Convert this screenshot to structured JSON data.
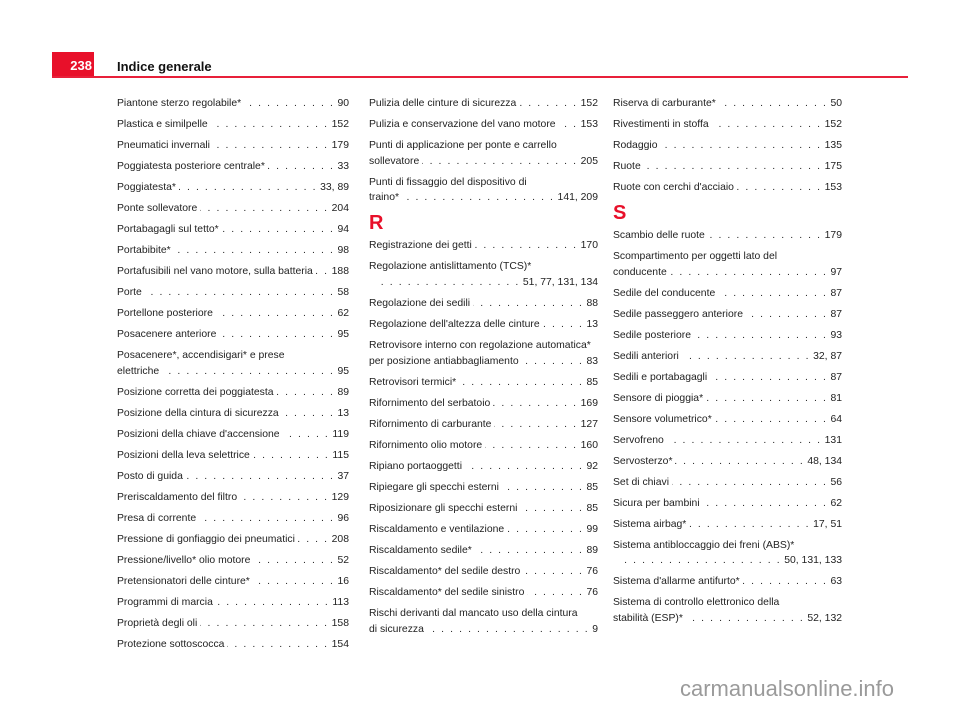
{
  "header": {
    "page_number": "238",
    "title": "Indice generale",
    "accent_color": "#e8102a"
  },
  "watermark": "carmanualsonline.info",
  "columns": [
    [
      {
        "text": "Piantone sterzo regolabile*",
        "pages": "90"
      },
      {
        "text": "Plastica e similpelle",
        "pages": "152"
      },
      {
        "text": "Pneumatici invernali",
        "pages": "179"
      },
      {
        "text": "Poggiatesta posteriore centrale*",
        "pages": "33"
      },
      {
        "text": "Poggiatesta*",
        "pages": "33, 89"
      },
      {
        "text": "Ponte sollevatore",
        "pages": "204"
      },
      {
        "text": "Portabagagli sul tetto*",
        "pages": "94"
      },
      {
        "text": "Portabibite*",
        "pages": "98"
      },
      {
        "text": "Portafusibili nel vano motore, sulla batteria",
        "pages": "188"
      },
      {
        "text": "Porte",
        "pages": "58"
      },
      {
        "text": "Portellone posteriore",
        "pages": "62"
      },
      {
        "text": "Posacenere anteriore",
        "pages": "95"
      },
      {
        "text": "Posacenere*, accendisigari* e prese",
        "text2": "elettriche",
        "pages": "95"
      },
      {
        "text": "Posizione corretta dei poggiatesta",
        "pages": "89"
      },
      {
        "text": "Posizione della cintura di sicurezza",
        "pages": "13"
      },
      {
        "text": "Posizioni della chiave d'accensione",
        "pages": "119"
      },
      {
        "text": "Posizioni della leva selettrice",
        "pages": "115"
      },
      {
        "text": "Posto di guida",
        "pages": "37"
      },
      {
        "text": "Preriscaldamento del filtro",
        "pages": "129"
      },
      {
        "text": "Presa di corrente",
        "pages": "96"
      },
      {
        "text": "Pressione di gonfiaggio dei pneumatici",
        "pages": "208"
      },
      {
        "text": "Pressione/livello* olio motore",
        "pages": "52"
      },
      {
        "text": "Pretensionatori delle cinture*",
        "pages": "16"
      },
      {
        "text": "Programmi di marcia",
        "pages": "113"
      },
      {
        "text": "Proprietà degli oli",
        "pages": "158"
      },
      {
        "text": "Protezione sottoscocca",
        "pages": "154"
      }
    ],
    [
      {
        "text": "Pulizia delle cinture di sicurezza",
        "pages": "152"
      },
      {
        "text": "Pulizia e conservazione del vano motore",
        "pages": "153"
      },
      {
        "text": "Punti di applicazione per ponte e carrello",
        "text2": "sollevatore",
        "pages": "205"
      },
      {
        "text": "Punti di fissaggio del dispositivo di",
        "text2": "traino*",
        "pages": "141, 209"
      },
      {
        "heading": "R"
      },
      {
        "text": "Registrazione dei getti",
        "pages": "170"
      },
      {
        "text": "Regolazione antislittamento (TCS)*",
        "text2": "",
        "pages": "51, 77, 131, 134"
      },
      {
        "text": "Regolazione dei sedili",
        "pages": "88"
      },
      {
        "text": "Regolazione dell'altezza delle cinture",
        "pages": "13"
      },
      {
        "text": "Retrovisore interno con regolazione automatica*",
        "text2": "per posizione antiabbagliamento",
        "pages": "83"
      },
      {
        "text": "Retrovisori termici*",
        "pages": "85"
      },
      {
        "text": "Rifornimento del serbatoio",
        "pages": "169"
      },
      {
        "text": "Rifornimento di carburante",
        "pages": "127"
      },
      {
        "text": "Rifornimento olio motore",
        "pages": "160"
      },
      {
        "text": "Ripiano portaoggetti",
        "pages": "92"
      },
      {
        "text": "Ripiegare gli specchi esterni",
        "pages": "85"
      },
      {
        "text": "Riposizionare gli specchi esterni",
        "pages": "85"
      },
      {
        "text": "Riscaldamento e ventilazione",
        "pages": "99"
      },
      {
        "text": "Riscaldamento sedile*",
        "pages": "89"
      },
      {
        "text": "Riscaldamento* del sedile destro",
        "pages": "76"
      },
      {
        "text": "Riscaldamento* del sedile sinistro",
        "pages": "76"
      },
      {
        "text": "Rischi derivanti dal mancato uso della cintura",
        "text2": "di sicurezza",
        "pages": "9"
      }
    ],
    [
      {
        "text": "Riserva di carburante*",
        "pages": "50"
      },
      {
        "text": "Rivestimenti in stoffa",
        "pages": "152"
      },
      {
        "text": "Rodaggio",
        "pages": "135"
      },
      {
        "text": "Ruote",
        "pages": "175"
      },
      {
        "text": "Ruote con cerchi d'acciaio",
        "pages": "153"
      },
      {
        "heading": "S"
      },
      {
        "text": "Scambio delle ruote",
        "pages": "179"
      },
      {
        "text": "Scompartimento per oggetti lato del",
        "text2": "conducente",
        "pages": "97"
      },
      {
        "text": "Sedile del conducente",
        "pages": "87"
      },
      {
        "text": "Sedile passeggero anteriore",
        "pages": "87"
      },
      {
        "text": "Sedile posteriore",
        "pages": "93"
      },
      {
        "text": "Sedili anteriori",
        "pages": "32, 87"
      },
      {
        "text": "Sedili e portabagagli",
        "pages": "87"
      },
      {
        "text": "Sensore di pioggia*",
        "pages": "81"
      },
      {
        "text": "Sensore volumetrico*",
        "pages": "64"
      },
      {
        "text": "Servofreno",
        "pages": "131"
      },
      {
        "text": "Servosterzo*",
        "pages": "48, 134"
      },
      {
        "text": "Set di chiavi",
        "pages": "56"
      },
      {
        "text": "Sicura per bambini",
        "pages": "62"
      },
      {
        "text": "Sistema airbag*",
        "pages": "17, 51"
      },
      {
        "text": "Sistema antibloccaggio dei freni (ABS)*",
        "text2": "",
        "pages": "50, 131, 133"
      },
      {
        "text": "Sistema d'allarme antifurto*",
        "pages": "63"
      },
      {
        "text": "Sistema di controllo elettronico della",
        "text2": "stabilità (ESP)*",
        "pages": "52, 132"
      }
    ]
  ]
}
